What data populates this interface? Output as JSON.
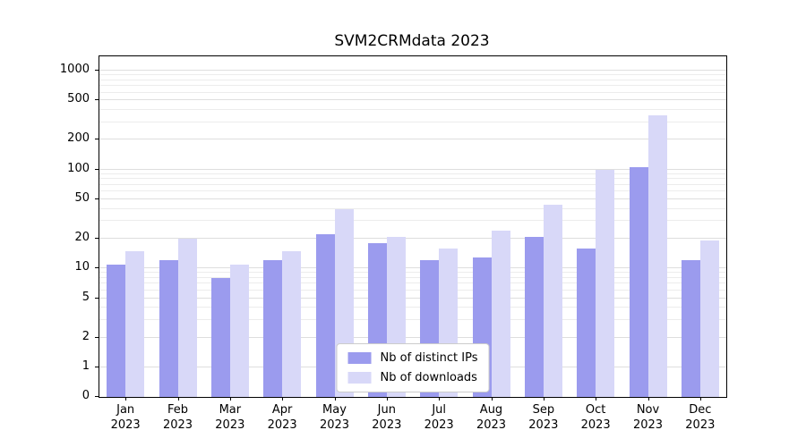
{
  "chart_data": {
    "type": "bar",
    "title": "SVM2CRMdata 2023",
    "categories": [
      "Jan 2023",
      "Feb 2023",
      "Mar 2023",
      "Apr 2023",
      "May 2023",
      "Jun 2023",
      "Jul 2023",
      "Aug 2023",
      "Sep 2023",
      "Oct 2023",
      "Nov 2023",
      "Dec 2023"
    ],
    "series": [
      {
        "name": "Nb of distinct IPs",
        "color": "#9b9bee",
        "values": [
          11,
          12,
          8,
          12,
          22,
          18,
          12,
          13,
          21,
          16,
          105,
          12
        ]
      },
      {
        "name": "Nb of downloads",
        "color": "#d8d8f8",
        "values": [
          15,
          20,
          11,
          15,
          40,
          21,
          16,
          24,
          44,
          100,
          350,
          19
        ]
      }
    ],
    "yscale": "symlog",
    "yticks": [
      0,
      1,
      2,
      5,
      10,
      20,
      50,
      100,
      200,
      500,
      1000
    ],
    "ylim": [
      0,
      1000
    ],
    "grid": "horizontal-major-and-minor",
    "legend_position": "lower center"
  }
}
